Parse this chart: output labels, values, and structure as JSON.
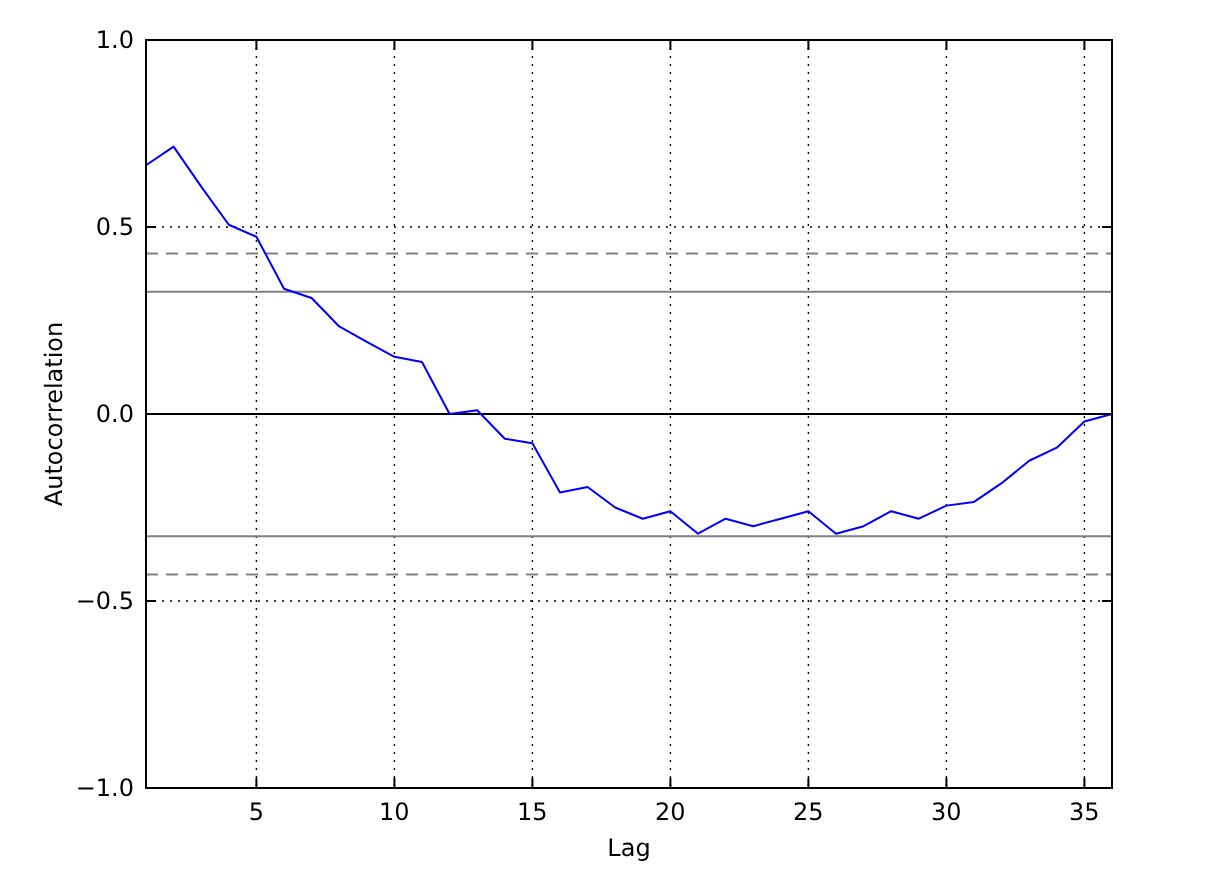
{
  "chart_data": {
    "type": "line",
    "xlabel": "Lag",
    "ylabel": "Autocorrelation",
    "x": [
      1,
      2,
      3,
      4,
      5,
      6,
      7,
      8,
      9,
      10,
      11,
      12,
      13,
      14,
      15,
      16,
      17,
      18,
      19,
      20,
      21,
      22,
      23,
      24,
      25,
      26,
      27,
      28,
      29,
      30,
      31,
      32,
      33,
      34,
      35,
      36
    ],
    "series": [
      {
        "color": "#0000ff",
        "values": [
          0.665,
          0.715,
          0.608,
          0.506,
          0.474,
          0.335,
          0.31,
          0.234,
          0.193,
          0.153,
          0.139,
          0,
          0.01,
          -0.066,
          -0.078,
          -0.21,
          -0.195,
          -0.25,
          -0.28,
          -0.26,
          -0.32,
          -0.28,
          -0.3,
          -0.28,
          -0.26,
          -0.32,
          -0.3,
          -0.26,
          -0.28,
          -0.245,
          -0.235,
          -0.185,
          -0.125,
          -0.09,
          -0.02,
          0
        ]
      }
    ],
    "xlim": [
      1,
      36
    ],
    "ylim": [
      -1,
      1
    ],
    "xticks": [
      5,
      10,
      15,
      20,
      25,
      30,
      35
    ],
    "yticks": [
      {
        "value": -1,
        "label": "−1.0"
      },
      {
        "value": -0.5,
        "label": "−0.5"
      },
      {
        "value": 0,
        "label": "0.0"
      },
      {
        "value": 0.5,
        "label": "0.5"
      },
      {
        "value": 1,
        "label": "1.0"
      }
    ],
    "ref_lines": [
      {
        "axis": "y",
        "value": 0.429,
        "color": "#808080",
        "line_style": "dashed"
      },
      {
        "axis": "y",
        "value": 0.327,
        "color": "#808080",
        "line_style": "solid"
      },
      {
        "axis": "y",
        "value": 0,
        "color": "#000000",
        "line_style": "solid"
      },
      {
        "axis": "y",
        "value": -0.327,
        "color": "#808080",
        "line_style": "solid"
      },
      {
        "axis": "y",
        "value": -0.429,
        "color": "#808080",
        "line_style": "dashed"
      }
    ],
    "grid": true,
    "marker": "none",
    "line_style": "solid"
  }
}
